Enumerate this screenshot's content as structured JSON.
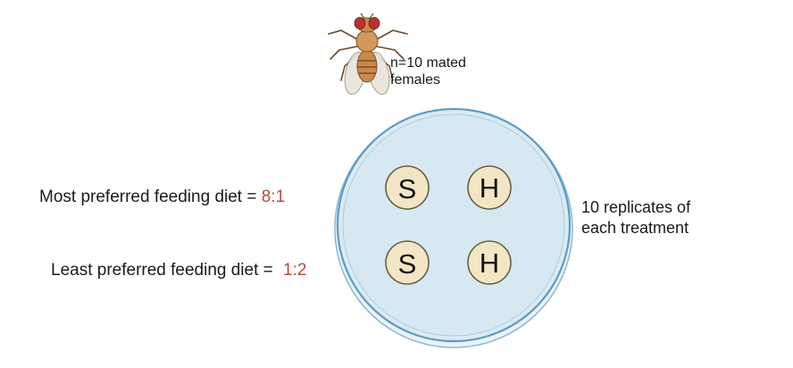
{
  "fly_label_line1": "n=10 mated",
  "fly_label_line2": "females",
  "replicates_line1": "10 replicates of",
  "replicates_line2": "each treatment",
  "most_preferred": {
    "text": "Most preferred feeding diet = ",
    "ratio": "8:1"
  },
  "least_preferred": {
    "text": "Least preferred feeding diet = ",
    "ratio": "1:2"
  },
  "wells": [
    {
      "letter": "S"
    },
    {
      "letter": "H"
    },
    {
      "letter": "S"
    },
    {
      "letter": "H"
    }
  ],
  "colors": {
    "dish_fill": "#dbeaf2",
    "dish_rim": "#5b9cc4",
    "well_fill": "#f2e6c4",
    "well_stroke": "#6b5f45",
    "ratio": "#b84a3a",
    "fly_body": "#c98a4b",
    "fly_eye": "#b8322a"
  }
}
